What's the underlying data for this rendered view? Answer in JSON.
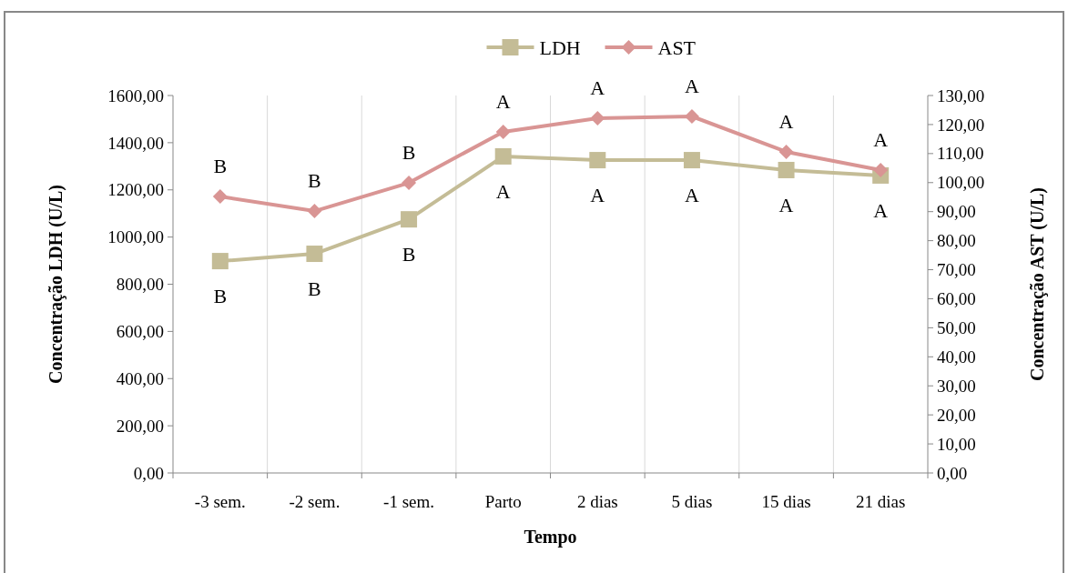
{
  "chart_data": {
    "type": "line",
    "xlabel": "Tempo",
    "ylabel": "Concentração LDH (U/L)",
    "y2label": "Concentração AST (U/L)",
    "categories": [
      "-3 sem.",
      "-2 sem.",
      "-1 sem.",
      "Parto",
      "2 dias",
      "5 dias",
      "15 dias",
      "21 dias"
    ],
    "series": [
      {
        "name": "LDH",
        "color": "#c4bc96",
        "marker": "square",
        "values": [
          898,
          929,
          1075,
          1342,
          1326,
          1326,
          1284,
          1261
        ],
        "value_labels": [
          "B",
          "B",
          "B",
          "A",
          "A",
          "A",
          "A",
          "A"
        ]
      },
      {
        "name": "AST",
        "color": "#d99594",
        "marker": "diamond",
        "axis": "y2",
        "values": [
          95.2,
          90.2,
          99.9,
          117.5,
          122.2,
          122.8,
          110.6,
          104.3
        ],
        "value_labels": [
          "B",
          "B",
          "B",
          "A",
          "A",
          "A",
          "A",
          "A"
        ]
      }
    ],
    "ylim": [
      0,
      1600
    ],
    "yticks": [
      {
        "value": 0,
        "label": "0,00"
      },
      {
        "value": 200,
        "label": "200,00"
      },
      {
        "value": 400,
        "label": "400,00"
      },
      {
        "value": 600,
        "label": "600,00"
      },
      {
        "value": 800,
        "label": "800,00"
      },
      {
        "value": 1000,
        "label": "1000,00"
      },
      {
        "value": 1200,
        "label": "1200,00"
      },
      {
        "value": 1400,
        "label": "1400,00"
      },
      {
        "value": 1600,
        "label": "1600,00"
      }
    ],
    "y2lim": [
      0,
      130
    ],
    "y2ticks": [
      {
        "value": 0,
        "label": "0,00"
      },
      {
        "value": 10,
        "label": "10,00"
      },
      {
        "value": 20,
        "label": "20,00"
      },
      {
        "value": 30,
        "label": "30,00"
      },
      {
        "value": 40,
        "label": "40,00"
      },
      {
        "value": 50,
        "label": "50,00"
      },
      {
        "value": 60,
        "label": "60,00"
      },
      {
        "value": 70,
        "label": "70,00"
      },
      {
        "value": 80,
        "label": "80,00"
      },
      {
        "value": 90,
        "label": "90,00"
      },
      {
        "value": 100,
        "label": "100,00"
      },
      {
        "value": 110,
        "label": "110,00"
      },
      {
        "value": 120,
        "label": "120,00"
      },
      {
        "value": 130,
        "label": "130,00"
      }
    ],
    "grid": "x",
    "legend": "top",
    "line_style": "solid"
  }
}
